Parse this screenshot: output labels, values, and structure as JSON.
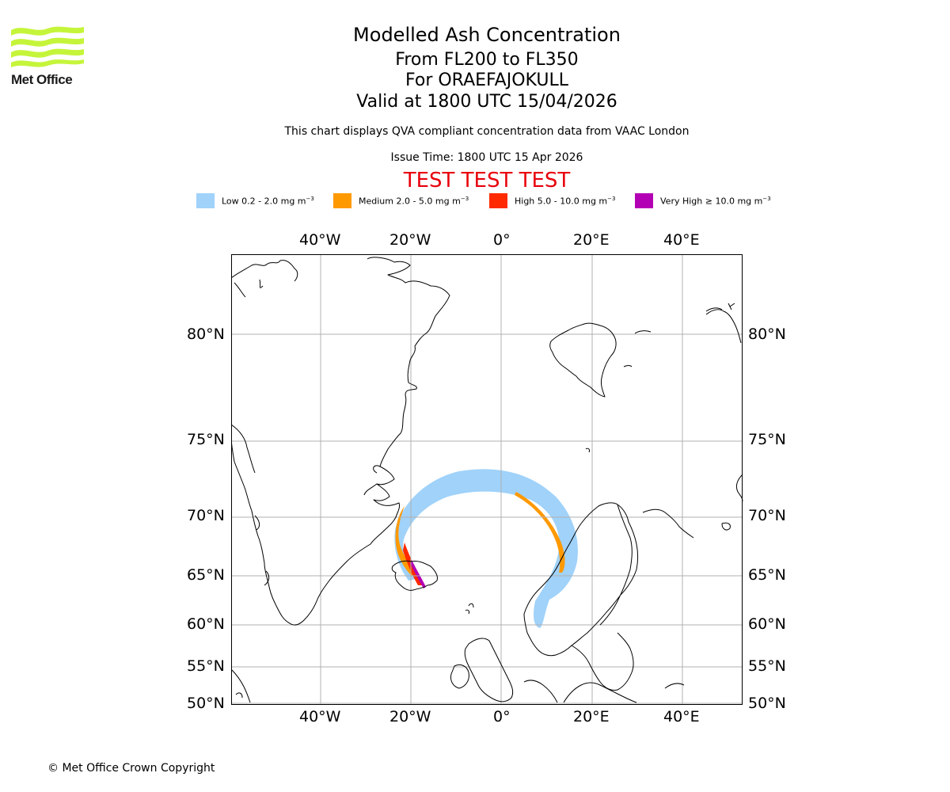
{
  "logo": {
    "text": "Met Office",
    "color": "#c5f53a"
  },
  "header": {
    "title": "Modelled Ash Concentration",
    "levels": "From FL200 to FL350",
    "volcano": "For ORAEFAJOKULL",
    "valid": "Valid at 1800 UTC 15/04/2026",
    "note": "This chart displays QVA compliant concentration data from VAAC London",
    "issue_time": "Issue Time: 1800 UTC 15 Apr 2026",
    "test_banner": "TEST TEST TEST"
  },
  "legend": [
    {
      "label": "Low 0.2 - 2.0 mg m",
      "unit_exp": "−3",
      "color": "#a0d2fa"
    },
    {
      "label": "Medium 2.0 - 5.0 mg m",
      "unit_exp": "−3",
      "color": "#ff9900"
    },
    {
      "label": "High 5.0 - 10.0 mg m",
      "unit_exp": "−3",
      "color": "#ff2a00"
    },
    {
      "label": "Very High  ≥  10.0 mg m",
      "unit_exp": "−3",
      "color": "#b400b4"
    }
  ],
  "axes": {
    "lon_labels": [
      "40°W",
      "20°W",
      "0°",
      "20°E",
      "40°E"
    ],
    "lat_labels": [
      "80°N",
      "75°N",
      "70°N",
      "65°N",
      "60°N",
      "55°N",
      "50°N"
    ]
  },
  "map": {
    "grid_color": "#b0b0b0",
    "coast_color": "#000000"
  },
  "footer": {
    "copyright": "© Met Office Crown Copyright"
  }
}
